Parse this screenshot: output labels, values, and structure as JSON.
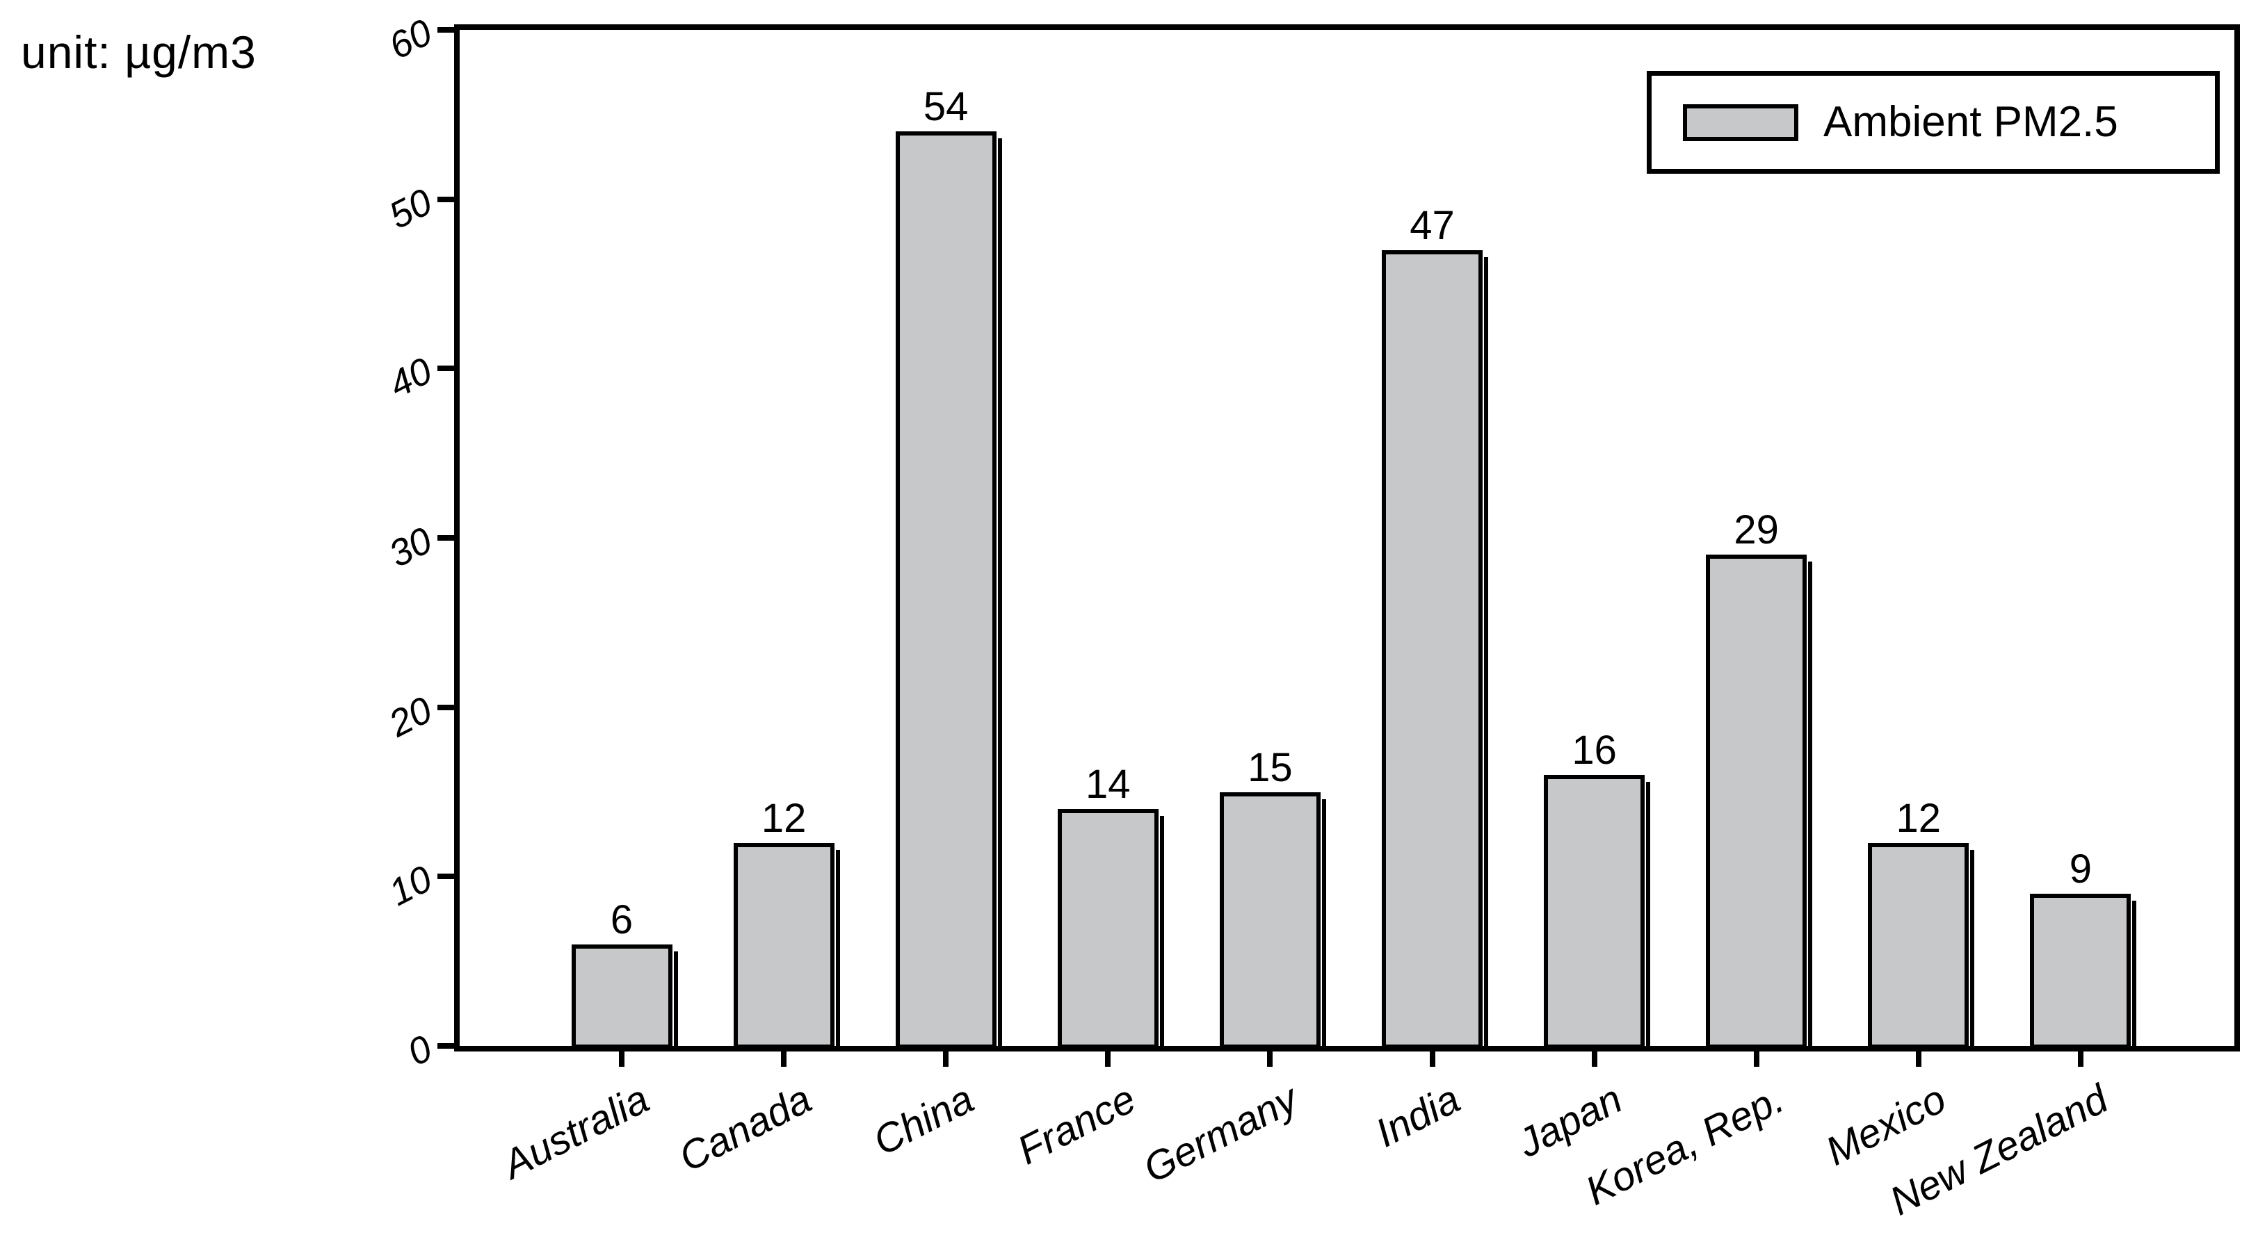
{
  "unit_label": "unit: µg/m3",
  "legend": {
    "label": "Ambient PM2.5"
  },
  "colors": {
    "background": "#ffffff",
    "bar_fill": "#c6c8ca",
    "bar_border": "#000000",
    "axis": "#000000",
    "text": "#000000"
  },
  "chart_data": {
    "type": "bar",
    "title": "",
    "unit": "µg/m3",
    "categories": [
      "Australia",
      "Canada",
      "China",
      "France",
      "Germany",
      "India",
      "Japan",
      "Korea, Rep.",
      "Mexico",
      "New Zealand"
    ],
    "values": [
      6,
      12,
      54,
      14,
      15,
      47,
      16,
      29,
      12,
      9
    ],
    "legend_entries": [
      "Ambient PM2.5"
    ],
    "xlabel": "",
    "ylabel": "",
    "ylim": [
      0,
      60
    ],
    "yticks": [
      0,
      10,
      20,
      30,
      40,
      50,
      60
    ],
    "grid": false,
    "legend_position": "top-right",
    "value_labels_shown": true
  }
}
